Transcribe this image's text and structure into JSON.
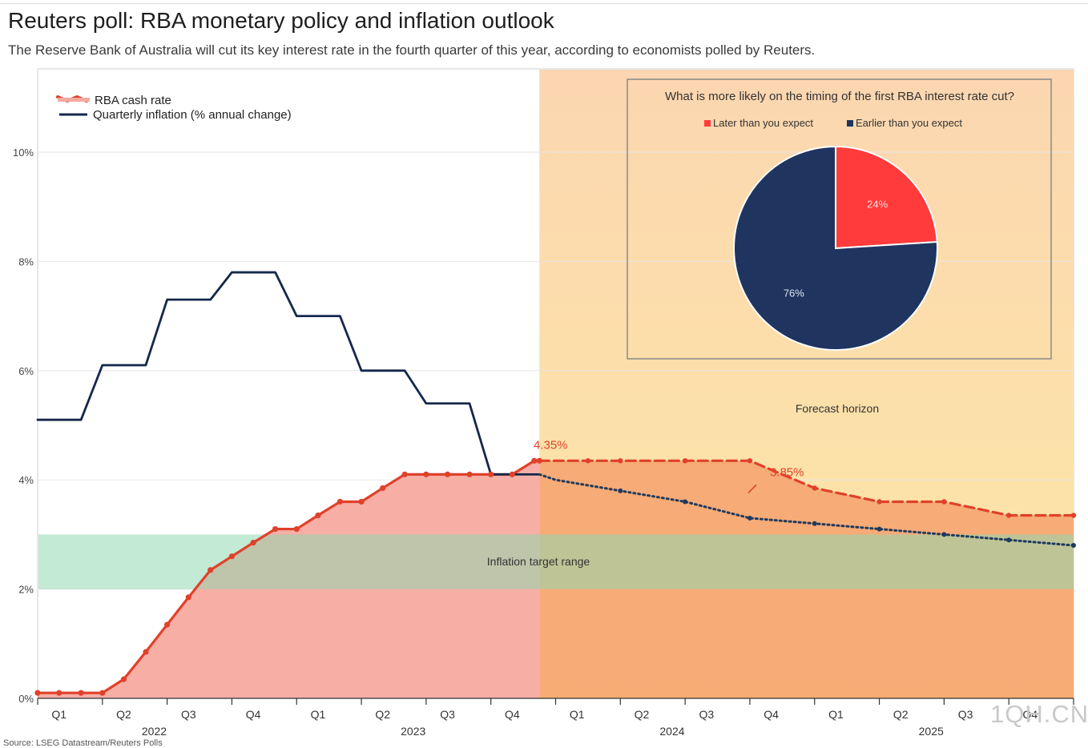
{
  "header": {
    "title": "Reuters poll: RBA monetary policy and inflation outlook",
    "subtitle": "The Reserve Bank of Australia will cut its key interest rate in the fourth quarter of this year, according to economists polled by Reuters."
  },
  "footer": {
    "source": "Source: LSEG Datastream/Reuters Polls",
    "watermark": "1QH.CN"
  },
  "colors": {
    "rate_line": "#e0412b",
    "rate_fill_history": "#f5aaa0",
    "rate_fill_forecast": "#f7a873",
    "inflation_line": "#14284b",
    "inflation_forecast": "#1f3a5f",
    "target_band": "#8fd8b0",
    "forecast_bg_top": "#fbd6b0",
    "forecast_bg_bottom": "#fde8a4",
    "pie_later": "#ff3b3b",
    "pie_earlier": "#1f3560",
    "grid": "#e6e6e6"
  },
  "chart_data": [
    {
      "type": "line",
      "legend": [
        {
          "key": "rate",
          "label": "RBA cash rate"
        },
        {
          "key": "inflation",
          "label": "Quarterly inflation (% annual change)"
        }
      ],
      "y_ticks": [
        "0%",
        "2%",
        "4%",
        "6%",
        "8%",
        "10%"
      ],
      "ylim": [
        0,
        11.5
      ],
      "quarters": [
        "Q1",
        "Q2",
        "Q3",
        "Q4",
        "Q1",
        "Q2",
        "Q3",
        "Q4",
        "Q1",
        "Q2",
        "Q3",
        "Q4",
        "Q1",
        "Q2",
        "Q3",
        "Q4"
      ],
      "years": [
        "2022",
        "2023",
        "2024",
        "2025"
      ],
      "x_range": [
        0,
        16
      ],
      "forecast_start": 7.75,
      "forecast_label": "Forecast horizon",
      "target_band": {
        "low": 2,
        "high": 3,
        "label": "Inflation target range"
      },
      "annotations": [
        {
          "text": "4.35%",
          "x": 7.35,
          "y": 4.35
        },
        {
          "text": "3.85%",
          "x": 11.0,
          "y": 3.85
        }
      ],
      "series": [
        {
          "name": "RBA cash rate",
          "style": "solid",
          "points": [
            [
              0,
              0.1
            ],
            [
              0.33,
              0.1
            ],
            [
              0.67,
              0.1
            ],
            [
              1.0,
              0.1
            ],
            [
              1.33,
              0.35
            ],
            [
              1.67,
              0.85
            ],
            [
              2.0,
              1.35
            ],
            [
              2.33,
              1.85
            ],
            [
              2.67,
              2.35
            ],
            [
              3.0,
              2.6
            ],
            [
              3.33,
              2.85
            ],
            [
              3.67,
              3.1
            ],
            [
              4.0,
              3.1
            ],
            [
              4.33,
              3.35
            ],
            [
              4.67,
              3.6
            ],
            [
              5.0,
              3.6
            ],
            [
              5.33,
              3.85
            ],
            [
              5.67,
              4.1
            ],
            [
              6.0,
              4.1
            ],
            [
              6.33,
              4.1
            ],
            [
              6.67,
              4.1
            ],
            [
              7.0,
              4.1
            ],
            [
              7.33,
              4.1
            ],
            [
              7.67,
              4.35
            ],
            [
              7.75,
              4.35
            ]
          ]
        },
        {
          "name": "RBA cash rate forecast",
          "style": "dashed",
          "points": [
            [
              7.75,
              4.35
            ],
            [
              8.5,
              4.35
            ],
            [
              9.0,
              4.35
            ],
            [
              10.0,
              4.35
            ],
            [
              11.0,
              4.35
            ],
            [
              12.0,
              3.85
            ],
            [
              13.0,
              3.6
            ],
            [
              14.0,
              3.6
            ],
            [
              15.0,
              3.35
            ],
            [
              16.0,
              3.35
            ]
          ]
        },
        {
          "name": "Quarterly inflation",
          "style": "solid",
          "points": [
            [
              0,
              5.1
            ],
            [
              0.67,
              5.1
            ],
            [
              1.0,
              6.1
            ],
            [
              1.67,
              6.1
            ],
            [
              2.0,
              7.3
            ],
            [
              2.67,
              7.3
            ],
            [
              3.0,
              7.8
            ],
            [
              3.67,
              7.8
            ],
            [
              4.0,
              7.0
            ],
            [
              4.67,
              7.0
            ],
            [
              5.0,
              6.0
            ],
            [
              5.67,
              6.0
            ],
            [
              6.0,
              5.4
            ],
            [
              6.67,
              5.4
            ],
            [
              7.0,
              4.1
            ],
            [
              7.75,
              4.1
            ]
          ]
        },
        {
          "name": "Quarterly inflation forecast",
          "style": "dotted",
          "points": [
            [
              7.75,
              4.1
            ],
            [
              8.0,
              4.0
            ],
            [
              9.0,
              3.8
            ],
            [
              10.0,
              3.6
            ],
            [
              11.0,
              3.3
            ],
            [
              12.0,
              3.2
            ],
            [
              13.0,
              3.1
            ],
            [
              14.0,
              3.0
            ],
            [
              15.0,
              2.9
            ],
            [
              16.0,
              2.8
            ]
          ]
        }
      ]
    },
    {
      "type": "pie",
      "title": "What is more likely on the timing of the first RBA interest rate cut?",
      "slices": [
        {
          "label": "Later than you expect",
          "value": 24,
          "display": "24%"
        },
        {
          "label": "Earlier than you expect",
          "value": 76,
          "display": "76%"
        }
      ]
    }
  ]
}
